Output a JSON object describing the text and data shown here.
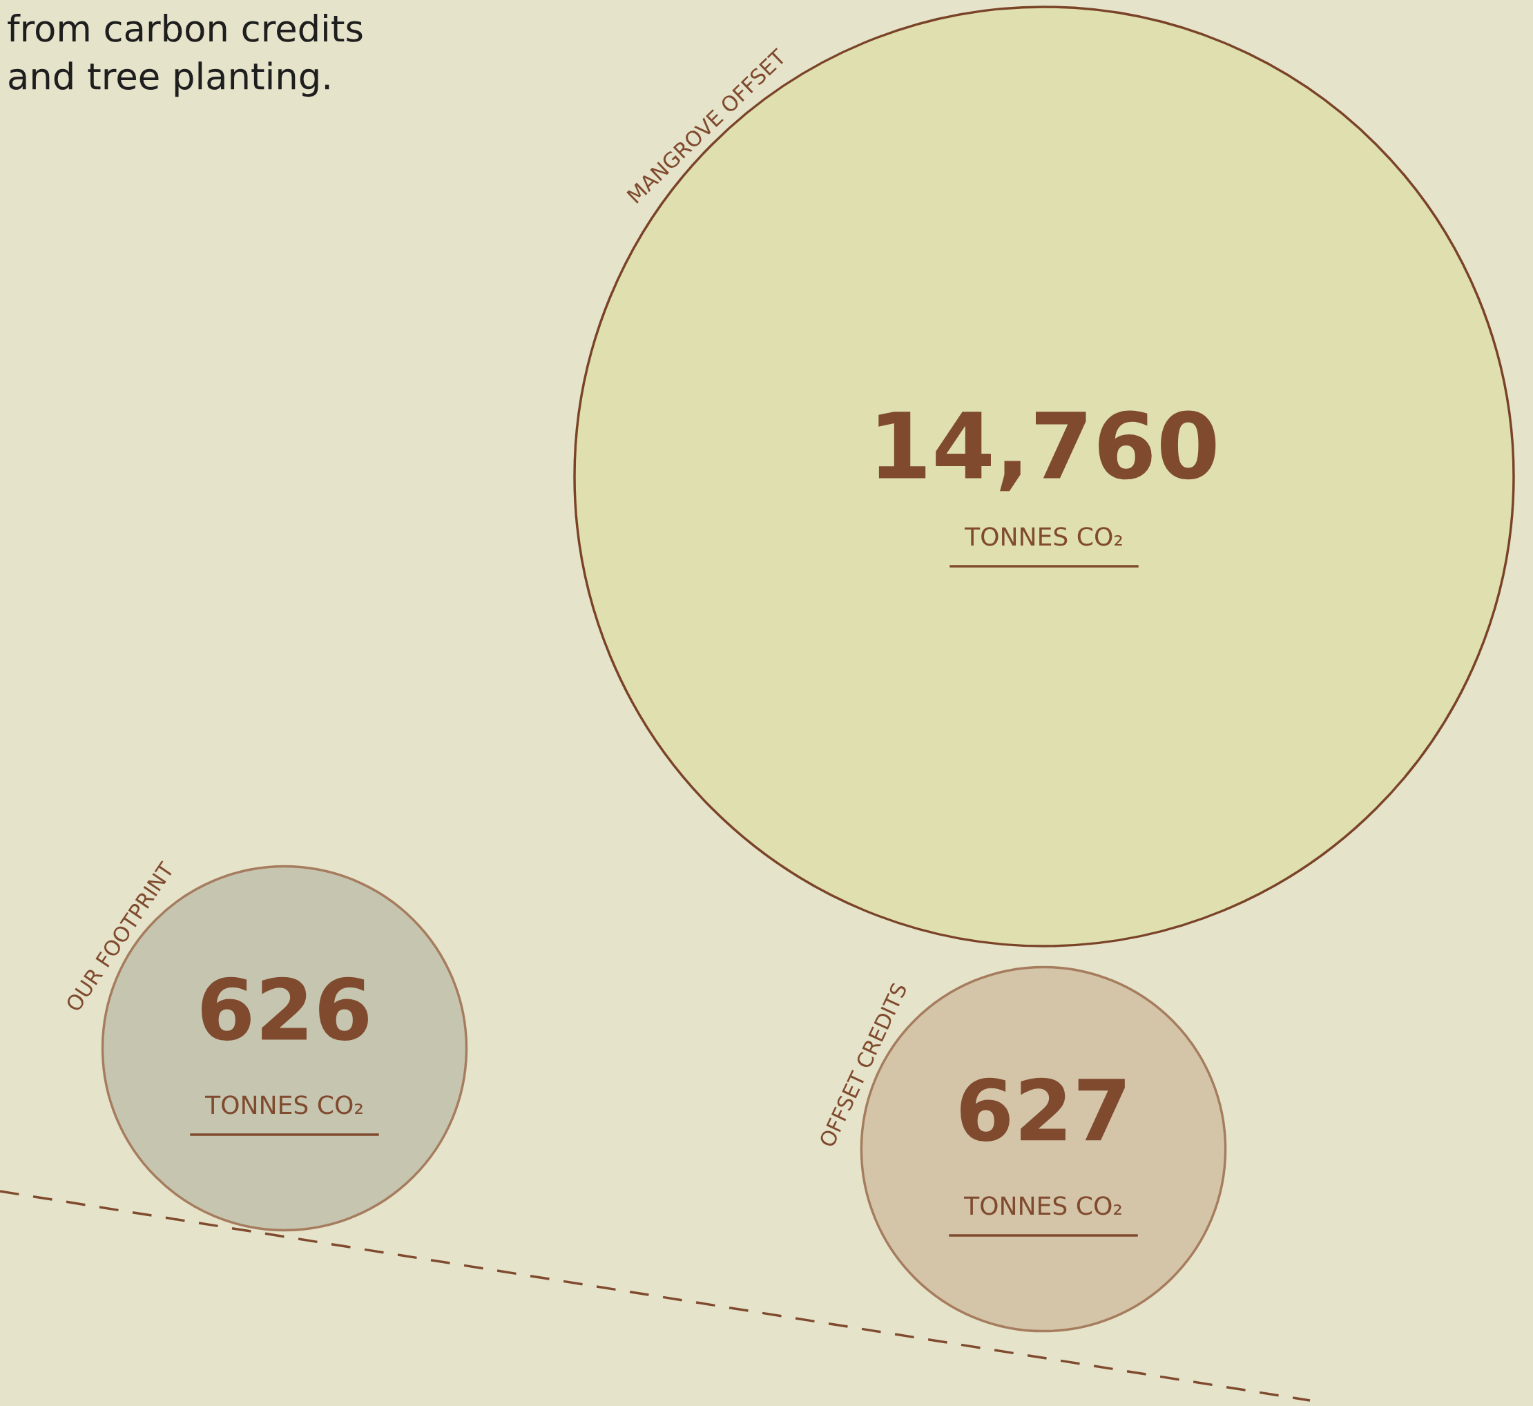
{
  "chart_data": {
    "type": "other",
    "categories": [
      "MANGROVE OFFSET",
      "OUR FOOTPRINT",
      "OFFSET CREDITS"
    ],
    "values": [
      14760,
      626,
      627
    ],
    "value_labels": [
      "14,760",
      "626",
      "627"
    ],
    "colors": [
      "#dfdfb0",
      "#c6c5b0",
      "#d4c5a8"
    ],
    "annotations": [
      "from carbon credits\nand tree planting.",
      "TONNES CO₂",
      "TONNES CO₂",
      "TONNES CO₂"
    ]
  }
}
